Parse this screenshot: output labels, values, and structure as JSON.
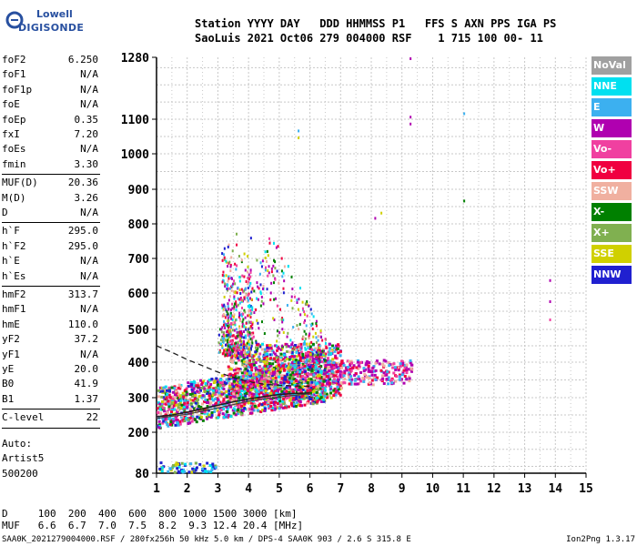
{
  "logo": {
    "line1": "Lowell",
    "line2": "DIGISONDE"
  },
  "header": {
    "line1": "Station YYYY DAY   DDD HHMMSS P1   FFS S AXN PPS IGA PS",
    "line2": "SaoLuis 2021 Oct06 279 004000 RSF    1 715 100 00- 11"
  },
  "params": [
    {
      "k": "foF2",
      "v": "6.250"
    },
    {
      "k": "foF1",
      "v": "N/A"
    },
    {
      "k": "foF1p",
      "v": "N/A"
    },
    {
      "k": "foE",
      "v": "N/A"
    },
    {
      "k": "foEp",
      "v": "0.35"
    },
    {
      "k": "fxI",
      "v": "7.20"
    },
    {
      "k": "foEs",
      "v": "N/A"
    },
    {
      "k": "fmin",
      "v": "3.30"
    },
    {
      "k": "MUF(D)",
      "v": "20.36"
    },
    {
      "k": "M(D)",
      "v": "3.26"
    },
    {
      "k": "D",
      "v": "N/A"
    },
    {
      "k": "h`F",
      "v": "295.0"
    },
    {
      "k": "h`F2",
      "v": "295.0"
    },
    {
      "k": "h`E",
      "v": "N/A"
    },
    {
      "k": "h`Es",
      "v": "N/A"
    },
    {
      "k": "hmF2",
      "v": "313.7"
    },
    {
      "k": "hmF1",
      "v": "N/A"
    },
    {
      "k": "hmE",
      "v": "110.0"
    },
    {
      "k": "yF2",
      "v": "37.2"
    },
    {
      "k": "yF1",
      "v": "N/A"
    },
    {
      "k": "yE",
      "v": "20.0"
    },
    {
      "k": "B0",
      "v": "41.9"
    },
    {
      "k": "B1",
      "v": "1.37"
    },
    {
      "k": "C-level",
      "v": "22"
    }
  ],
  "auto": {
    "line1": "Auto:",
    "line2": "Artist5",
    "line3": "500200"
  },
  "legend": [
    {
      "label": "NoVal",
      "color": "#a0a0a0"
    },
    {
      "label": "NNE",
      "color": "#00e0f0"
    },
    {
      "label": "E",
      "color": "#3cb0f0"
    },
    {
      "label": "W",
      "color": "#b000b0"
    },
    {
      "label": "Vo-",
      "color": "#f040a0"
    },
    {
      "label": "Vo+",
      "color": "#f00040"
    },
    {
      "label": "SSW",
      "color": "#f0b0a0"
    },
    {
      "label": "X-",
      "color": "#008000"
    },
    {
      "label": "X+",
      "color": "#80b050"
    },
    {
      "label": "SSE",
      "color": "#d0d000"
    },
    {
      "label": "NNW",
      "color": "#2020d0"
    }
  ],
  "footer": {
    "line1": "D     100  200  400  600  800 1000 1500 3000 [km]",
    "line2": "MUF   6.6  6.7  7.0  7.5  8.2  9.3 12.4 20.4 [MHz]"
  },
  "bottom": {
    "left": "SAA0K_2021279004000.RSF / 280fx256h 50 kHz 5.0 km / DPS-4 SAA0K 903 / 2.6 S 315.8 E",
    "right": "Ion2Png 1.3.17"
  },
  "chart_data": {
    "type": "scatter",
    "x_ticks": [
      1,
      2,
      3,
      4,
      5,
      6,
      7,
      8,
      9,
      10,
      11,
      12,
      13,
      14,
      15
    ],
    "y_ticks": [
      80,
      200,
      300,
      400,
      500,
      600,
      700,
      800,
      900,
      1000,
      1100,
      1280
    ],
    "xlim": [
      1,
      15
    ],
    "ylim": [
      80,
      1280
    ],
    "grid": true,
    "y_scale": "nonlinear (virtual height)",
    "profile_curve": [
      [
        1.0,
        245
      ],
      [
        1.5,
        250
      ],
      [
        2.0,
        258
      ],
      [
        2.5,
        268
      ],
      [
        3.0,
        278
      ],
      [
        3.5,
        288
      ],
      [
        4.0,
        296
      ],
      [
        4.5,
        303
      ],
      [
        5.0,
        309
      ],
      [
        5.5,
        312
      ],
      [
        6.0,
        313
      ]
    ],
    "trace_dashed": [
      [
        1.0,
        450
      ],
      [
        1.5,
        430
      ],
      [
        2.0,
        408
      ],
      [
        2.5,
        390
      ],
      [
        3.0,
        372
      ],
      [
        3.5,
        357
      ],
      [
        4.0,
        345
      ],
      [
        4.5,
        338
      ],
      [
        5.0,
        335
      ],
      [
        5.5,
        333
      ],
      [
        6.0,
        332
      ]
    ],
    "trace_lower": [
      [
        1.0,
        240
      ],
      [
        2.0,
        252
      ],
      [
        3.0,
        270
      ],
      [
        4.0,
        290
      ],
      [
        5.0,
        302
      ],
      [
        6.0,
        311
      ]
    ],
    "echo_regions": [
      {
        "name": "F-main",
        "x": [
          1.0,
          6.5
        ],
        "y": [
          215,
          390
        ]
      },
      {
        "name": "F-spread",
        "x": [
          3.3,
          7.0
        ],
        "y": [
          300,
          460
        ]
      },
      {
        "name": "F-upper",
        "x": [
          3.0,
          6.5
        ],
        "y": [
          430,
          780
        ]
      },
      {
        "name": "F-tail",
        "x": [
          6.5,
          9.3
        ],
        "y": [
          340,
          410
        ]
      },
      {
        "name": "E-layer",
        "x": [
          1.0,
          2.9
        ],
        "y": [
          85,
          115
        ]
      }
    ],
    "isolated_points": [
      {
        "x": 9.25,
        "y": 1280,
        "c": "W"
      },
      {
        "x": 9.25,
        "y": 1110,
        "c": "W"
      },
      {
        "x": 9.25,
        "y": 1090,
        "c": "W"
      },
      {
        "x": 11.0,
        "y": 1120,
        "c": "E"
      },
      {
        "x": 11.0,
        "y": 870,
        "c": "X-"
      },
      {
        "x": 13.8,
        "y": 640,
        "c": "W"
      },
      {
        "x": 13.8,
        "y": 580,
        "c": "W"
      },
      {
        "x": 13.8,
        "y": 530,
        "c": "Vo-"
      },
      {
        "x": 5.6,
        "y": 1070,
        "c": "E"
      },
      {
        "x": 5.6,
        "y": 1050,
        "c": "SSE"
      },
      {
        "x": 8.3,
        "y": 835,
        "c": "SSE"
      },
      {
        "x": 8.1,
        "y": 820,
        "c": "W"
      }
    ]
  }
}
